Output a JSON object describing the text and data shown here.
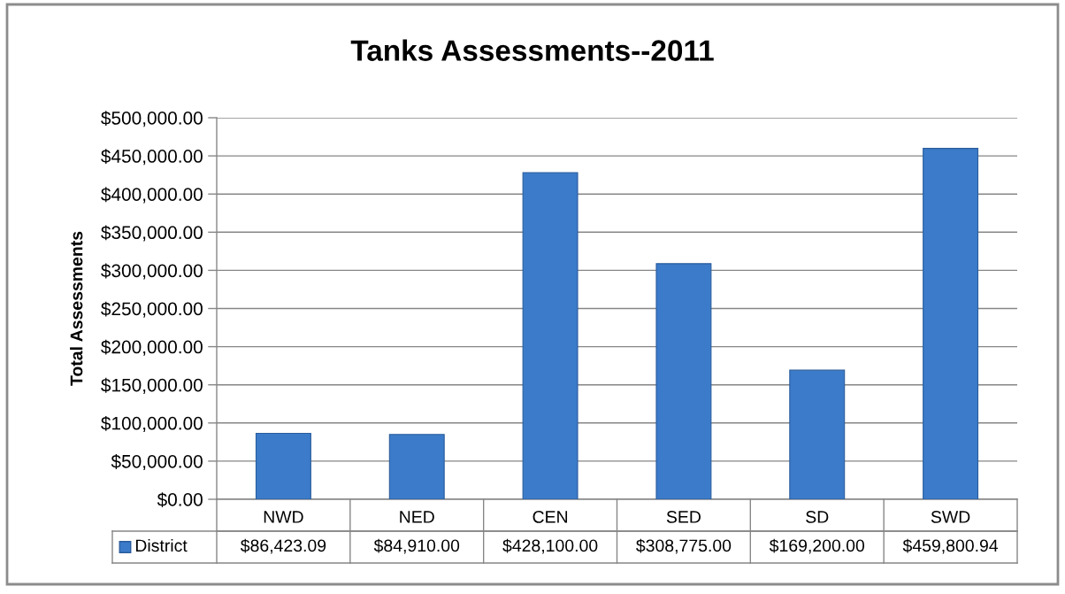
{
  "chart_data": {
    "type": "bar",
    "title": "Tanks Assessments--2011",
    "ylabel": "Total Assessments",
    "categories": [
      "NWD",
      "NED",
      "CEN",
      "SED",
      "SD",
      "SWD"
    ],
    "series": [
      {
        "name": "District",
        "color": "#3b7bc9",
        "values": [
          86423.09,
          84910.0,
          428100.0,
          308775.0,
          169200.0,
          459800.94
        ],
        "value_labels": [
          "$86,423.09",
          "$84,910.00",
          "$428,100.00",
          "$308,775.00",
          "$169,200.00",
          "$459,800.94"
        ]
      }
    ],
    "ylim": [
      0,
      500000
    ],
    "yticks": [
      {
        "value": 0,
        "label": "$0.00"
      },
      {
        "value": 50000,
        "label": "$50,000.00"
      },
      {
        "value": 100000,
        "label": "$100,000.00"
      },
      {
        "value": 150000,
        "label": "$150,000.00"
      },
      {
        "value": 200000,
        "label": "$200,000.00"
      },
      {
        "value": 250000,
        "label": "$250,000.00"
      },
      {
        "value": 300000,
        "label": "$300,000.00"
      },
      {
        "value": 350000,
        "label": "$350,000.00"
      },
      {
        "value": 400000,
        "label": "$400,000.00"
      },
      {
        "value": 450000,
        "label": "$450,000.00"
      },
      {
        "value": 500000,
        "label": "$500,000.00"
      }
    ],
    "grid": "y"
  }
}
